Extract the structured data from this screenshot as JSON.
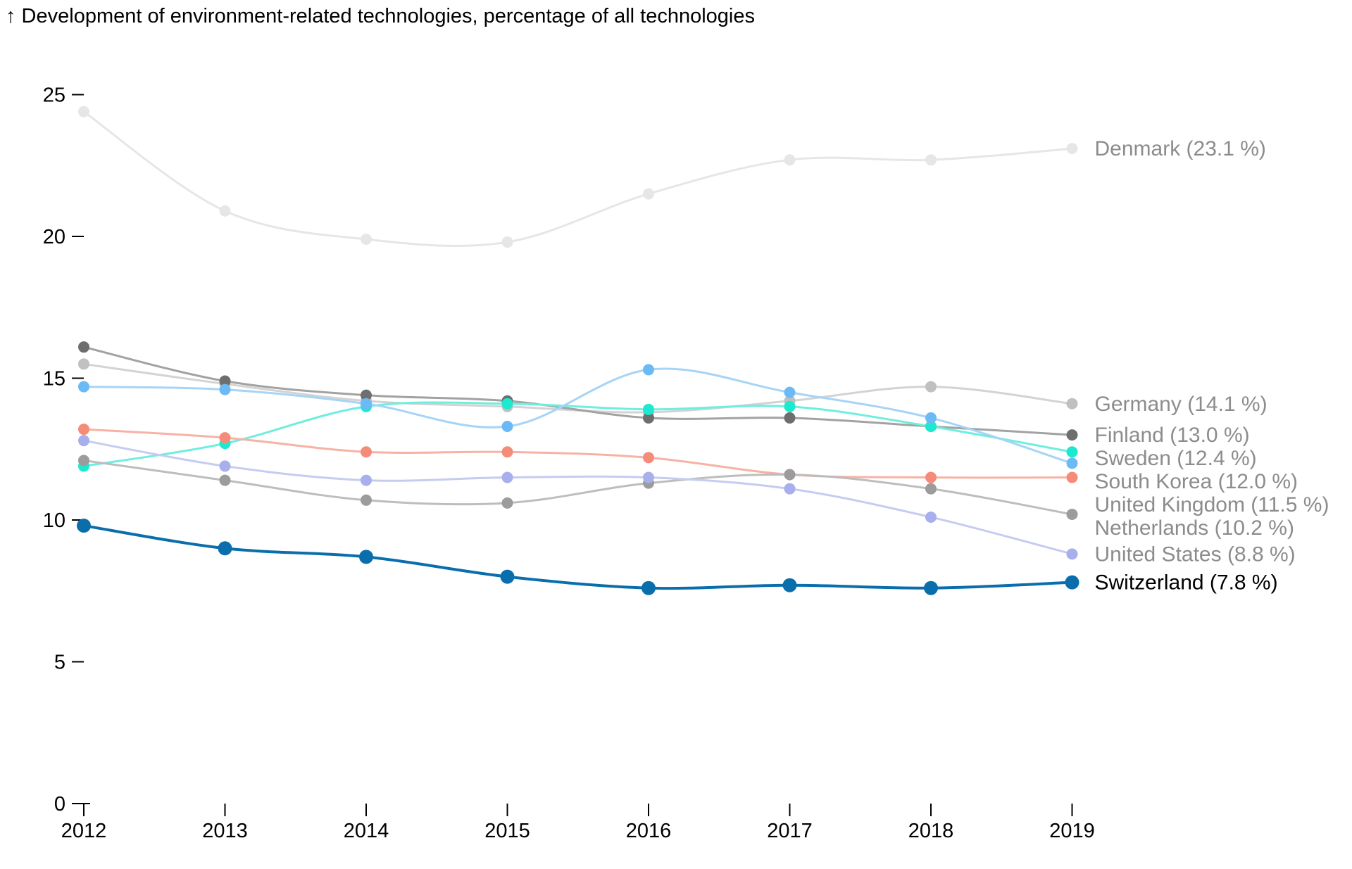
{
  "chart_data": {
    "type": "line",
    "title": "↑ Development of environment-related technologies, percentage of all technologies",
    "xlabel": "",
    "ylabel": "",
    "ylim": [
      0,
      25
    ],
    "yticks": [
      0,
      5,
      10,
      15,
      20,
      25
    ],
    "ytick_labels": [
      "0",
      "5",
      "10",
      "15",
      "20",
      "25"
    ],
    "x": [
      "2012",
      "2013",
      "2014",
      "2015",
      "2016",
      "2017",
      "2018",
      "2019"
    ],
    "grid": false,
    "legend": "none (direct labels at line ends, right side)",
    "series": [
      {
        "name": "Denmark",
        "label": "Denmark (23.1 %)",
        "color": "#e6e6e6",
        "label_color": "#8c8c8c",
        "values": [
          24.4,
          20.9,
          19.9,
          19.8,
          21.5,
          22.7,
          22.7,
          23.1
        ]
      },
      {
        "name": "Germany",
        "label": "Germany (14.1 %)",
        "color": "#d3d3d3",
        "marker_color": "#c0c0c0",
        "label_color": "#8c8c8c",
        "values": [
          15.5,
          14.8,
          14.2,
          14.0,
          13.8,
          14.2,
          14.7,
          14.1
        ]
      },
      {
        "name": "Finland",
        "label": "Finland (13.0 %)",
        "color": "#a2a2a2",
        "marker_color": "#6e6e6e",
        "label_color": "#8c8c8c",
        "values": [
          16.1,
          14.9,
          14.4,
          14.2,
          13.6,
          13.6,
          13.3,
          13.0
        ]
      },
      {
        "name": "Sweden",
        "label": "Sweden (12.4 %)",
        "color": "#6eeede",
        "marker_color": "#1de9d0",
        "label_color": "#8c8c8c",
        "values": [
          11.9,
          12.7,
          14.0,
          14.1,
          13.9,
          14.0,
          13.3,
          12.4
        ]
      },
      {
        "name": "South Korea",
        "label": "South Korea (12.0 %)",
        "color": "#a6d4f7",
        "marker_color": "#6cbaf5",
        "label_color": "#8c8c8c",
        "values": [
          14.7,
          14.6,
          14.1,
          13.3,
          15.3,
          14.5,
          13.6,
          12.0
        ]
      },
      {
        "name": "United Kingdom",
        "label": "United Kingdom (11.5 %)",
        "color": "#f7b2a6",
        "marker_color": "#f58c7a",
        "label_color": "#8c8c8c",
        "values": [
          13.2,
          12.9,
          12.4,
          12.4,
          12.2,
          11.6,
          11.5,
          11.5
        ]
      },
      {
        "name": "Netherlands",
        "label": "Netherlands (10.2 %)",
        "color": "#bdbdbd",
        "marker_color": "#9c9c9c",
        "label_color": "#8c8c8c",
        "values": [
          12.1,
          11.4,
          10.7,
          10.6,
          11.3,
          11.6,
          11.1,
          10.2
        ]
      },
      {
        "name": "United States",
        "label": "United States (8.8 %)",
        "color": "#c6cbf1",
        "marker_color": "#a7afec",
        "label_color": "#8c8c8c",
        "values": [
          12.8,
          11.9,
          11.4,
          11.5,
          11.5,
          11.1,
          10.1,
          8.8
        ]
      },
      {
        "name": "Switzerland",
        "label": "Switzerland (7.8 %)",
        "color": "#0a6ead",
        "marker_color": "#0a6ead",
        "label_color": "#000000",
        "highlight": true,
        "values": [
          9.8,
          9.0,
          8.7,
          8.0,
          7.6,
          7.7,
          7.6,
          7.8
        ]
      }
    ]
  }
}
